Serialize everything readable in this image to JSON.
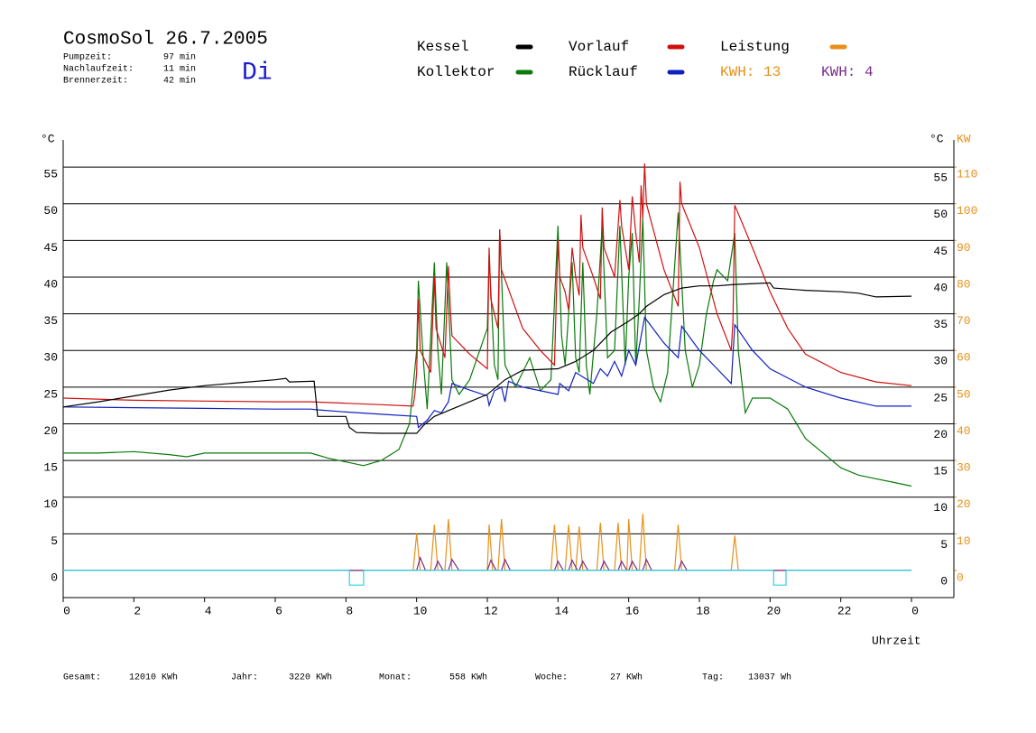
{
  "header": {
    "title": "CosmoSol 26.7.2005",
    "weekday": "Di",
    "stats": [
      {
        "label": "Pumpzeit:",
        "value": "97 min"
      },
      {
        "label": "Nachlaufzeit:",
        "value": "11 min"
      },
      {
        "label": "Brennerzeit:",
        "value": "42 min"
      }
    ]
  },
  "footer": [
    {
      "label": "Gesamt:",
      "value": "12010 KWh"
    },
    {
      "label": "Jahr:",
      "value": "3220 KWh"
    },
    {
      "label": "Monat:",
      "value": "558 KWh"
    },
    {
      "label": "Woche:",
      "value": "27 KWh"
    },
    {
      "label": "Tag:",
      "value": "13037 Wh"
    }
  ],
  "chart_data": {
    "type": "line",
    "ylabel": "°C",
    "y2label_c": "°C",
    "y2label": "KW",
    "xlabel": "Uhrzeit",
    "annotations": [
      {
        "text": "KWH: 13",
        "color": "#e8901a"
      },
      {
        "text": "KWH: 4",
        "color": "#7a2a8a"
      }
    ],
    "xlim": [
      0,
      25.2
    ],
    "xticks": [
      0,
      2,
      4,
      6,
      8,
      10,
      12,
      14,
      16,
      18,
      20,
      22,
      {
        "value": 24,
        "label": "0"
      }
    ],
    "ylim": [
      -3.7,
      58.7
    ],
    "yticks": [
      0,
      5,
      10,
      15,
      20,
      25,
      30,
      35,
      40,
      45,
      50,
      55
    ],
    "y2lim": [
      -7.4,
      117.4
    ],
    "y2ticks": [
      0,
      10,
      20,
      30,
      40,
      50,
      60,
      70,
      80,
      90,
      100,
      110
    ],
    "grid": true,
    "series": [
      {
        "name": "Kessel",
        "color": "#000000",
        "x": [
          0,
          1,
          2,
          3,
          4,
          5,
          6,
          6.3,
          6.4,
          7.1,
          7.2,
          8,
          8.1,
          8.3,
          9,
          10,
          10.2,
          10.5,
          11,
          11.5,
          12,
          12.5,
          13,
          14,
          14.5,
          15,
          15.5,
          16,
          16.3,
          16.5,
          17,
          17.5,
          18,
          18.5,
          19,
          20,
          20.1,
          21,
          22,
          22.5,
          23,
          24
        ],
        "values": [
          22.3,
          23,
          23.8,
          24.6,
          25.2,
          25.6,
          26,
          26.2,
          25.7,
          25.8,
          21,
          21,
          19.5,
          18.8,
          18.7,
          18.7,
          19.8,
          21,
          22,
          23,
          24,
          26,
          27.3,
          27.5,
          28.5,
          30,
          32.5,
          34,
          35,
          36,
          37.6,
          38.5,
          38.8,
          38.8,
          39,
          39.2,
          38.5,
          38.2,
          38,
          37.8,
          37.3,
          37.4
        ]
      },
      {
        "name": "Kollektor",
        "color": "#0a7a0a",
        "x": [
          0,
          1,
          2,
          3,
          3.5,
          4,
          5,
          6,
          7,
          7.5,
          8,
          8.5,
          9,
          9.5,
          9.8,
          10,
          10.05,
          10.2,
          10.3,
          10.5,
          10.6,
          10.7,
          10.85,
          11,
          11.2,
          11.5,
          12,
          12.05,
          12.2,
          12.3,
          12.35,
          12.5,
          12.8,
          13.2,
          13.5,
          13.8,
          14,
          14.1,
          14.2,
          14.3,
          14.4,
          14.5,
          14.6,
          14.7,
          14.8,
          14.9,
          15.1,
          15.25,
          15.4,
          15.6,
          15.75,
          15.9,
          16,
          16.1,
          16.2,
          16.3,
          16.4,
          16.5,
          16.7,
          16.9,
          17.1,
          17.4,
          17.6,
          17.8,
          18,
          18.2,
          18.4,
          18.5,
          18.6,
          18.8,
          19,
          19.1,
          19.3,
          19.5,
          20,
          20.5,
          21,
          21.5,
          22,
          22.5,
          23,
          23.5,
          24
        ],
        "values": [
          16,
          16,
          16.2,
          15.8,
          15.5,
          16,
          16,
          16,
          16,
          15.3,
          14.8,
          14.3,
          15,
          16.5,
          20,
          30,
          39.5,
          28,
          22,
          42,
          30,
          24,
          42,
          26,
          24,
          26,
          33,
          43,
          28,
          26,
          46.5,
          28,
          25,
          29,
          24.5,
          26,
          47,
          32,
          28,
          35,
          42,
          29,
          27,
          42,
          28,
          24,
          35,
          47,
          29,
          30,
          47,
          28,
          40,
          46,
          28,
          37,
          48,
          30,
          25,
          23,
          27,
          48.8,
          30,
          25,
          28,
          35,
          39.5,
          41,
          40.5,
          39.5,
          46,
          30,
          21.5,
          23.5,
          23.5,
          22,
          18,
          16,
          14,
          13,
          12.5,
          12,
          11.5
        ]
      },
      {
        "name": "Vorlauf",
        "color": "#d01010",
        "x": [
          0,
          2,
          4,
          6,
          7,
          8,
          9,
          9.9,
          9.95,
          10,
          10.05,
          10.1,
          10.4,
          10.5,
          10.55,
          10.8,
          10.9,
          10.95,
          11,
          11.5,
          12,
          12.05,
          12.1,
          12.3,
          12.35,
          12.4,
          13,
          13.5,
          13.8,
          13.9,
          14,
          14.05,
          14.2,
          14.3,
          14.4,
          14.5,
          14.6,
          14.65,
          14.7,
          15,
          15.2,
          15.25,
          15.3,
          15.6,
          15.75,
          15.8,
          16,
          16.1,
          16.2,
          16.3,
          16.35,
          16.4,
          16.45,
          16.5,
          17,
          17.4,
          17.45,
          17.5,
          18,
          18.5,
          18.9,
          18.95,
          19,
          19.5,
          20,
          20.5,
          21,
          22,
          23,
          24
        ],
        "values": [
          23.5,
          23.2,
          23.1,
          23,
          23,
          22.8,
          22.6,
          22.4,
          24,
          27,
          37,
          30,
          27,
          40,
          33,
          29,
          41.5,
          36,
          32,
          29.5,
          27.5,
          44,
          37,
          33,
          46.5,
          41,
          33,
          30,
          28.5,
          28,
          45,
          40,
          38,
          35.5,
          44,
          40,
          37.5,
          48.5,
          44,
          40,
          37,
          49.5,
          44,
          40,
          50.5,
          47,
          41,
          51,
          46,
          42,
          52.5,
          48,
          55.5,
          50,
          41,
          36,
          53,
          50,
          44,
          35,
          30,
          34,
          49.8,
          44,
          38,
          33,
          29.5,
          27,
          25.7,
          25.2
        ]
      },
      {
        "name": "Rücklauf",
        "color": "#1020c0",
        "x": [
          0,
          2,
          4,
          6,
          7,
          7.2,
          8,
          9,
          10,
          10.05,
          10.3,
          10.5,
          10.7,
          10.9,
          11,
          11.5,
          12,
          12.05,
          12.2,
          12.4,
          12.5,
          12.6,
          13,
          14,
          14.05,
          14.3,
          14.5,
          15,
          15.2,
          15.4,
          15.6,
          15.8,
          16,
          16.2,
          16.45,
          17,
          17.4,
          17.5,
          18,
          18.5,
          18.9,
          19,
          19.5,
          20,
          21,
          22,
          23,
          24
        ],
        "values": [
          22.3,
          22.2,
          22.1,
          22,
          22,
          21.9,
          21.6,
          21.3,
          21,
          19.5,
          20.5,
          21.8,
          21.5,
          23,
          25.5,
          24.6,
          23.8,
          22.5,
          24.5,
          25,
          23,
          25.8,
          25,
          24,
          25.5,
          24.5,
          27,
          25.5,
          27.5,
          26.5,
          28.5,
          26.5,
          30,
          28,
          34.5,
          31,
          29,
          33.3,
          30,
          27.5,
          25.5,
          33.5,
          30,
          27.5,
          25,
          23.5,
          22.4,
          22.4
        ]
      },
      {
        "name": "Leistung",
        "color": "#e8901a",
        "axis": "y2",
        "x": [
          0,
          9.9,
          10,
          10.1,
          10.4,
          10.5,
          10.6,
          10.8,
          10.9,
          11,
          12,
          12.05,
          12.15,
          12.3,
          12.4,
          12.5,
          13.8,
          13.9,
          14,
          14.2,
          14.3,
          14.4,
          14.5,
          14.6,
          14.7,
          15.1,
          15.2,
          15.3,
          15.6,
          15.7,
          15.8,
          15.95,
          16,
          16.1,
          16.3,
          16.4,
          16.5,
          17.3,
          17.4,
          17.5,
          18.9,
          19,
          19.1,
          24
        ],
        "values": [
          0,
          0,
          10,
          0,
          0,
          12.5,
          0,
          0,
          14,
          0,
          0,
          12.5,
          0,
          0,
          14,
          0,
          0,
          12.5,
          0,
          0,
          12.5,
          0,
          0,
          12,
          0,
          0,
          13,
          0,
          0,
          13,
          0,
          0,
          14,
          0,
          0,
          15.5,
          0,
          0,
          12.5,
          0,
          0,
          9.5,
          0,
          0
        ]
      },
      {
        "color": "#7a2a8a",
        "axis": "y2",
        "x": [
          0,
          10,
          10.1,
          10.25,
          10.5,
          10.6,
          10.75,
          10.9,
          11,
          11.2,
          12,
          12.1,
          12.25,
          12.4,
          12.5,
          12.65,
          13.9,
          14,
          14.15,
          14.3,
          14.4,
          14.55,
          14.6,
          14.7,
          14.85,
          15.2,
          15.3,
          15.45,
          15.7,
          15.8,
          15.95,
          16,
          16.1,
          16.25,
          16.4,
          16.5,
          16.65,
          17.4,
          17.5,
          17.65,
          24
        ],
        "values": [
          0,
          0,
          3.5,
          0,
          0,
          2.5,
          0,
          0,
          3,
          0,
          0,
          2.8,
          0,
          0,
          3,
          0,
          0,
          2.5,
          0,
          0,
          2.8,
          0,
          0,
          2.5,
          0,
          0,
          2.5,
          0,
          0,
          2.5,
          0,
          0,
          2.5,
          0,
          0,
          3,
          0,
          0,
          2.5,
          0,
          0
        ]
      },
      {
        "color": "#30d0e0",
        "x": [
          0,
          8.1,
          8.1,
          8.5,
          8.5,
          20.1,
          20.1,
          20.45,
          20.45,
          24
        ],
        "values": [
          0,
          0,
          -2,
          -2,
          0,
          0,
          -2,
          -2,
          0,
          0
        ]
      }
    ]
  }
}
